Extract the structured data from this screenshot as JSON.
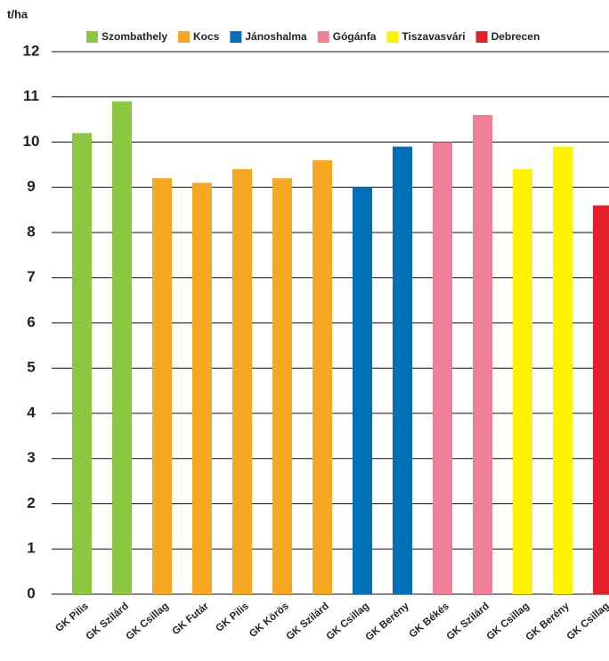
{
  "chart_data": {
    "type": "bar",
    "y_label": "t/ha",
    "categories": [
      "GK Pilis",
      "GK Szilárd",
      "GK Csillag",
      "GK Futár",
      "GK Pilis",
      "GK Körös",
      "GK Szilárd",
      "GK Csillag",
      "GK Berény",
      "GK Békés",
      "GK Szilárd",
      "GK Csillag",
      "GK Berény",
      "GK Csillag"
    ],
    "series": [
      {
        "name": "Szombathely",
        "color": "#8dc63f",
        "values": [
          10.2,
          10.9,
          null,
          null,
          null,
          null,
          null,
          null,
          null,
          null,
          null,
          null,
          null,
          null
        ]
      },
      {
        "name": "Kocs",
        "color": "#f7a823",
        "values": [
          null,
          null,
          9.2,
          9.1,
          9.4,
          9.2,
          9.6,
          null,
          null,
          null,
          null,
          null,
          null,
          null
        ]
      },
      {
        "name": "Jánoshalma",
        "color": "#0070b8",
        "values": [
          null,
          null,
          null,
          null,
          null,
          null,
          null,
          9.0,
          9.9,
          null,
          null,
          null,
          null,
          null
        ]
      },
      {
        "name": "Gógánfa",
        "color": "#f07f95",
        "values": [
          null,
          null,
          null,
          null,
          null,
          null,
          null,
          null,
          null,
          10.0,
          10.6,
          null,
          null,
          null
        ]
      },
      {
        "name": "Tiszavasvári",
        "color": "#fff200",
        "values": [
          null,
          null,
          null,
          null,
          null,
          null,
          null,
          null,
          null,
          null,
          null,
          9.4,
          9.9,
          null
        ]
      },
      {
        "name": "Debrecen",
        "color": "#e2202a",
        "values": [
          null,
          null,
          null,
          null,
          null,
          null,
          null,
          null,
          null,
          null,
          null,
          null,
          null,
          8.6
        ]
      }
    ],
    "ylim": [
      0,
      12
    ],
    "yticks": [
      0,
      1,
      2,
      3,
      4,
      5,
      6,
      7,
      8,
      9,
      10,
      11,
      12
    ],
    "grid": true,
    "legend": "top"
  }
}
